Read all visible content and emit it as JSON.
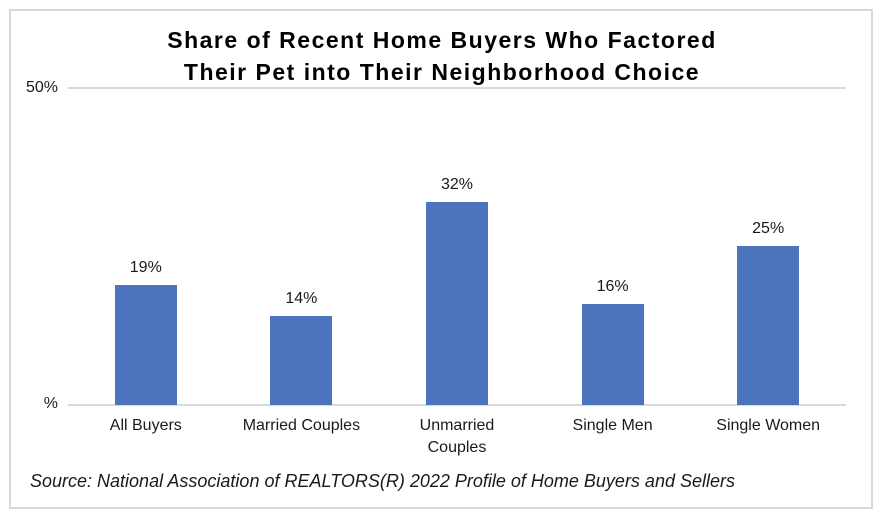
{
  "title": {
    "line1": "Share of Recent Home Buyers Who Factored",
    "line2": "Their Pet into Their Neighborhood Choice"
  },
  "y_axis": {
    "top_label": "50%",
    "bottom_label": "%"
  },
  "source_note": "Source: National Association of REALTORS(R) 2022 Profile of Home Buyers and Sellers",
  "colors": {
    "bar": "#4C74BC",
    "gridline": "#D9D9D9",
    "frame_border": "#D9D9D9",
    "title_text": "#000000",
    "label_text": "#1a1a1a"
  },
  "chart_data": {
    "type": "bar",
    "title": "Share of Recent Home Buyers Who Factored Their Pet into Their Neighborhood Choice",
    "categories": [
      "All Buyers",
      "Married Couples",
      "Unmarried Couples",
      "Single Men",
      "Single Women"
    ],
    "values": [
      19,
      14,
      32,
      16,
      25
    ],
    "value_labels": [
      "19%",
      "14%",
      "32%",
      "16%",
      "25%"
    ],
    "category_label_lines": [
      [
        "All Buyers"
      ],
      [
        "Married Couples"
      ],
      [
        "Unmarried",
        "Couples"
      ],
      [
        "Single Men"
      ],
      [
        "Single Women"
      ]
    ],
    "xlabel": "",
    "ylabel": "",
    "ylim": [
      0,
      50
    ],
    "y_tick_labels": [
      "%",
      "50%"
    ],
    "grid": "horizontal lines at 0% and 50% only",
    "legend": "none",
    "bar_color": "#4C74BC",
    "annotation": "Source: National Association of REALTORS(R) 2022 Profile of Home Buyers and Sellers"
  }
}
